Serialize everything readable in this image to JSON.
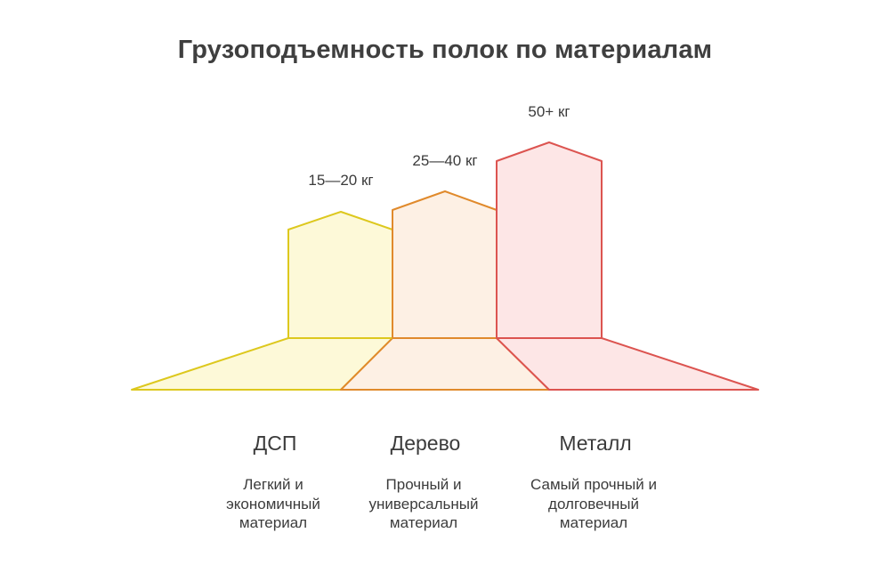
{
  "title": "Грузоподъемность полок по материалам",
  "materials": [
    {
      "name": "ДСП",
      "capacity": "15—20 кг",
      "description_lines": [
        "Легкий и",
        "экономичный",
        "материал"
      ],
      "stroke": "#ddc81e",
      "fill": "#fdf9d8"
    },
    {
      "name": "Дерево",
      "capacity": "25—40 кг",
      "description_lines": [
        "Прочный и",
        "универсальный",
        "материал"
      ],
      "stroke": "#e08a2c",
      "fill": "#fdf0e4"
    },
    {
      "name": "Металл",
      "capacity": "50+ кг",
      "description_lines": [
        "Самый прочный и",
        "долговечный",
        "материал"
      ],
      "stroke": "#dc5450",
      "fill": "#fde6e6"
    }
  ]
}
